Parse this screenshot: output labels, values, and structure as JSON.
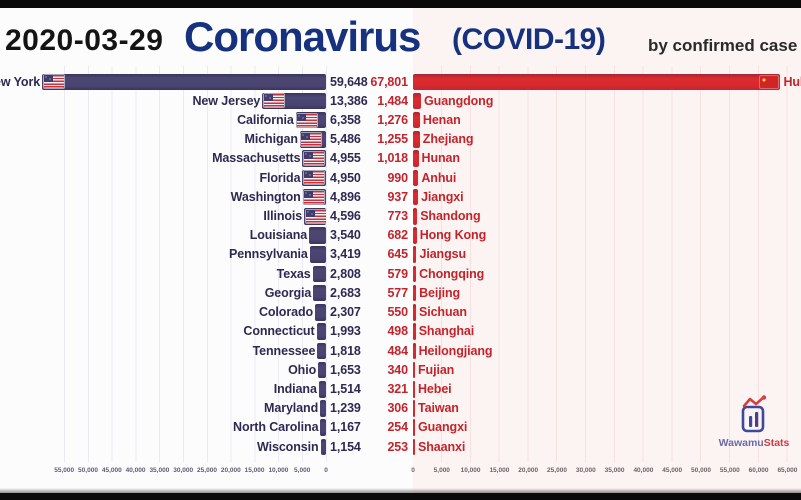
{
  "header": {
    "date": "2020-03-29",
    "title": "Coronavirus",
    "subtitle": "(COVID-19)",
    "byline": "by confirmed case"
  },
  "colors": {
    "title_blue": "#16327e",
    "us_bar": "#4a4470",
    "us_text": "#2d2a52",
    "cn_bar": "#d5282e",
    "cn_text": "#c3242b"
  },
  "icons": {
    "us_flag": "us-flag-icon",
    "china_flag": "china-flag-icon",
    "logo": "wawamustats-logo-icon"
  },
  "watermark": {
    "brand_blue": "Wawamu",
    "brand_red": "Stats"
  },
  "chart_data": {
    "type": "bar",
    "title": "Coronavirus (COVID-19)",
    "date": "2020-03-29",
    "unit": "by confirmed case",
    "layout": "mirrored horizontal bar race, US states growing left, Chinese provinces growing right",
    "series": [
      {
        "name": "United States",
        "orientation": "left",
        "color": "#4a4470",
        "text_color": "#2d2a52",
        "categories": [
          "New York",
          "New Jersey",
          "California",
          "Michigan",
          "Massachusetts",
          "Florida",
          "Washington",
          "Illinois",
          "Louisiana",
          "Pennsylvania",
          "Texas",
          "Georgia",
          "Colorado",
          "Connecticut",
          "Tennessee",
          "Ohio",
          "Indiana",
          "Maryland",
          "North Carolina",
          "Wisconsin"
        ],
        "values": [
          59648,
          13386,
          6358,
          5486,
          4955,
          4950,
          4896,
          4596,
          3540,
          3419,
          2808,
          2683,
          2307,
          1993,
          1818,
          1653,
          1514,
          1239,
          1167,
          1154
        ]
      },
      {
        "name": "China",
        "orientation": "right",
        "color": "#d5282e",
        "text_color": "#c3242b",
        "categories": [
          "Hubei",
          "Guangdong",
          "Henan",
          "Zhejiang",
          "Hunan",
          "Anhui",
          "Jiangxi",
          "Shandong",
          "Hong Kong",
          "Jiangsu",
          "Chongqing",
          "Beijing",
          "Sichuan",
          "Shanghai",
          "Heilongjiang",
          "Fujian",
          "Hebei",
          "Taiwan",
          "Guangxi",
          "Shaanxi"
        ],
        "values": [
          67801,
          1484,
          1276,
          1255,
          1018,
          990,
          937,
          773,
          682,
          645,
          579,
          577,
          550,
          498,
          484,
          340,
          321,
          306,
          254,
          253
        ]
      }
    ],
    "x_axis": {
      "left_ticks": [
        "55,000",
        "50,000",
        "45,000",
        "40,000",
        "35,000",
        "30,000",
        "25,000",
        "20,000",
        "15,000",
        "10,000",
        "5,000",
        "0"
      ],
      "right_ticks": [
        "0",
        "5,000",
        "10,000",
        "15,000",
        "20,000",
        "25,000",
        "30,000",
        "35,000",
        "40,000",
        "45,000",
        "50,000",
        "55,000",
        "60,000",
        "65,000"
      ],
      "tick_interval": 5000
    },
    "grid": true,
    "legend": false
  }
}
